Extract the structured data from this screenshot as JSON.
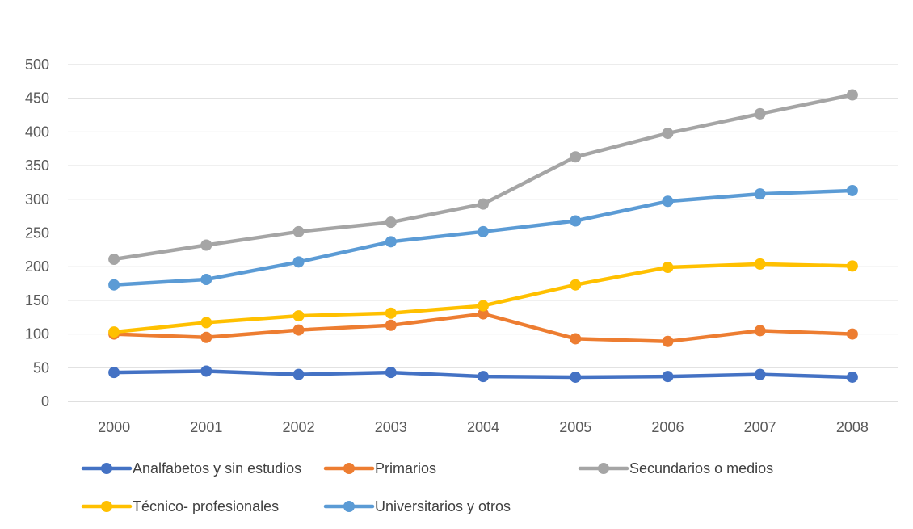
{
  "chart_data": {
    "type": "line",
    "title": "",
    "xlabel": "",
    "ylabel": "",
    "categories": [
      "2000",
      "2001",
      "2002",
      "2003",
      "2004",
      "2005",
      "2006",
      "2007",
      "2008"
    ],
    "ylim": [
      0,
      500
    ],
    "yticks": [
      0,
      50,
      100,
      150,
      200,
      250,
      300,
      350,
      400,
      450,
      500
    ],
    "grid": true,
    "legend_position": "bottom",
    "series": [
      {
        "name": "Analfabetos y sin estudios",
        "color": "#4472C4",
        "values": [
          43,
          45,
          40,
          43,
          37,
          36,
          37,
          40,
          36
        ]
      },
      {
        "name": "Primarios",
        "color": "#ED7D31",
        "values": [
          100,
          95,
          106,
          113,
          130,
          93,
          89,
          105,
          100
        ]
      },
      {
        "name": "Secundarios o medios",
        "color": "#A5A5A5",
        "values": [
          211,
          232,
          252,
          266,
          293,
          363,
          398,
          427,
          455
        ]
      },
      {
        "name": "Técnico- profesionales",
        "color": "#FFC000",
        "values": [
          103,
          117,
          127,
          131,
          142,
          173,
          199,
          204,
          201
        ]
      },
      {
        "name": "Universitarios y otros",
        "color": "#5B9BD5",
        "values": [
          173,
          181,
          207,
          237,
          252,
          268,
          297,
          308,
          313
        ]
      }
    ]
  }
}
